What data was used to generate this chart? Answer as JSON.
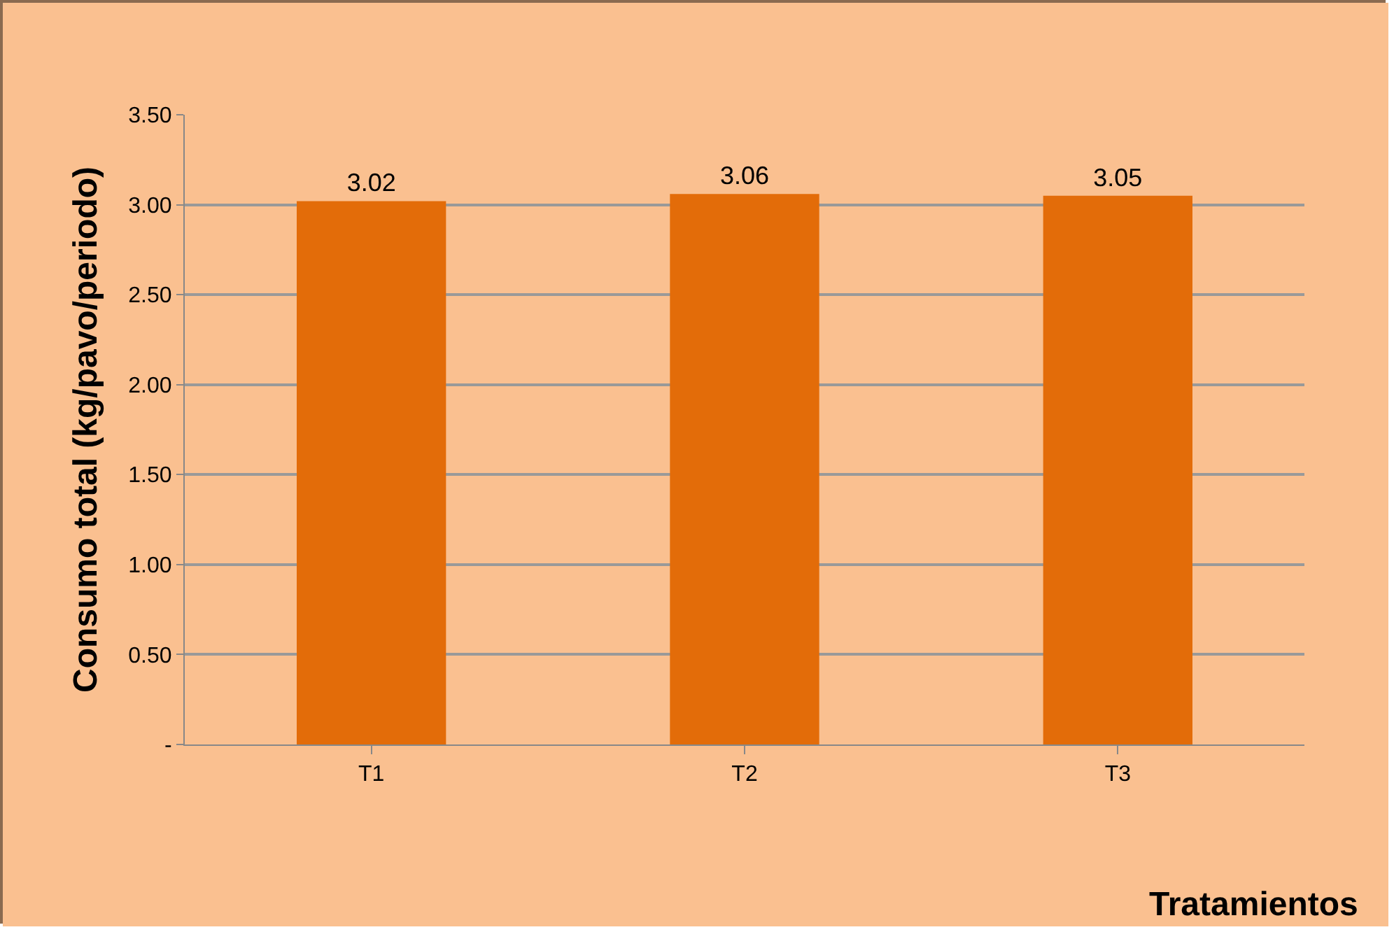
{
  "chart_data": {
    "type": "bar",
    "xlabel": "Tratamientos",
    "ylabel": "Consumo total (kg/pavo/periodo)",
    "categories": [
      "T1",
      "T2",
      "T3"
    ],
    "values": [
      3.02,
      3.06,
      3.05
    ],
    "color": "#e36c09",
    "data_labels": true,
    "ylim": [
      0,
      3.5
    ],
    "yticks": [
      {
        "value": 0,
        "label": "-"
      },
      {
        "value": 0.5,
        "label": "0.50"
      },
      {
        "value": 1,
        "label": "1.00"
      },
      {
        "value": 1.5,
        "label": "1.50"
      },
      {
        "value": 2,
        "label": "2.00"
      },
      {
        "value": 2.5,
        "label": "2.50"
      },
      {
        "value": 3,
        "label": "3.00"
      },
      {
        "value": 3.5,
        "label": "3.50"
      }
    ],
    "grid": "y"
  }
}
